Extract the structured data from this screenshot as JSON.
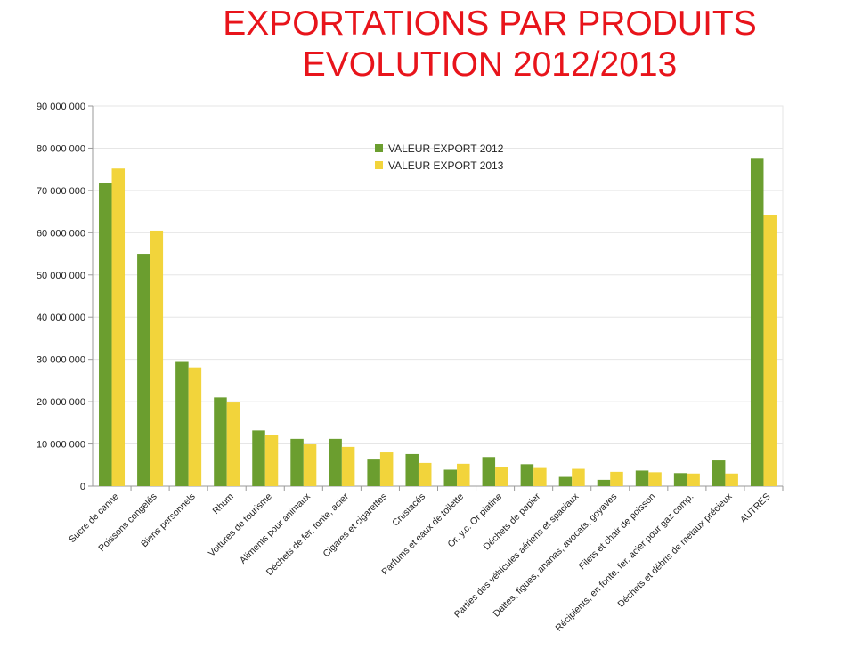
{
  "title_line1": "EXPORTATIONS PAR PRODUITS",
  "title_line2": "EVOLUTION 2012/2013",
  "colors": {
    "title": "#e8141b",
    "series2012": "#6b9e2f",
    "series2013": "#f2d43b",
    "grid": "#e6e6e6",
    "axis": "#999999"
  },
  "chart_data": {
    "type": "bar",
    "title": "EXPORTATIONS PAR PRODUITS EVOLUTION 2012/2013",
    "xlabel": "",
    "ylabel": "",
    "ylim": [
      0,
      90000000
    ],
    "yticks": [
      "0",
      "10 000 000",
      "20 000 000",
      "30 000 000",
      "40 000 000",
      "50 000 000",
      "60 000 000",
      "70 000 000",
      "80 000 000",
      "90 000 000"
    ],
    "grid": true,
    "legend_position": "top-center",
    "categories": [
      "Sucre de canne",
      "Poissons congelés",
      "Biens personnels",
      "Rhum",
      "Voitures de tourisme",
      "Aliments pour animaux",
      "Déchets de fer, fonte, acier",
      "Cigares et cigarettes",
      "Crustacés",
      "Parfums et eaux de toilette",
      "Or, y.c. Or platine",
      "Déchets de papier",
      "Parties des véhicules aériens et spaciaux",
      "Dattes, figues, ananas, avocats, goyaves",
      "Filets et chair de poisson",
      "Récipients, en fonte, fer, acier pour gaz comp.",
      "Déchets et débris de métaux précieux",
      "AUTRES"
    ],
    "series": [
      {
        "name": "VALEUR EXPORT 2012",
        "values": [
          71800000,
          55000000,
          29400000,
          21000000,
          13200000,
          11200000,
          11200000,
          6300000,
          7600000,
          3900000,
          6900000,
          5200000,
          2200000,
          1500000,
          3700000,
          3100000,
          6100000,
          77500000
        ]
      },
      {
        "name": "VALEUR EXPORT 2013",
        "values": [
          75200000,
          60500000,
          28100000,
          19800000,
          12100000,
          9900000,
          9300000,
          8000000,
          5500000,
          5300000,
          4600000,
          4300000,
          4100000,
          3400000,
          3300000,
          3000000,
          3000000,
          64200000
        ]
      }
    ]
  }
}
